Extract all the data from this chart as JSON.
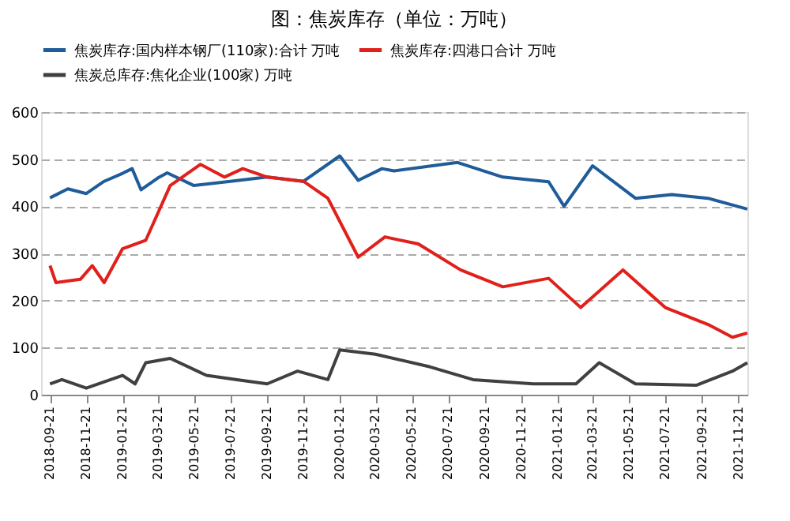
{
  "chart_data": {
    "type": "line",
    "title": "图：焦炭库存（单位：万吨）",
    "xlim": [
      "2018-09-06",
      "2021-12-06"
    ],
    "xticks": [
      "2018-09-21",
      "2018-11-21",
      "2019-01-21",
      "2019-03-21",
      "2019-05-21",
      "2019-07-21",
      "2019-09-21",
      "2019-11-21",
      "2020-01-21",
      "2020-03-21",
      "2020-05-21",
      "2020-07-21",
      "2020-09-21",
      "2020-11-21",
      "2021-01-21",
      "2021-03-21",
      "2021-05-21",
      "2021-07-21",
      "2021-09-21",
      "2021-11-21"
    ],
    "ylim": [
      0,
      600
    ],
    "yticks": [
      0,
      100,
      200,
      300,
      400,
      500,
      600
    ],
    "grid": "y",
    "legend": "top",
    "line_style": "solid",
    "marker": "none",
    "series": [
      {
        "name": "焦炭库存:国内样本钢厂(110家):合计 万吨",
        "color": "#1f5c99",
        "x": [
          "2018-09-21",
          "2018-10-21",
          "2018-11-21",
          "2018-12-21",
          "2019-01-21",
          "2019-02-06",
          "2019-02-21",
          "2019-03-21",
          "2019-04-06",
          "2019-05-21",
          "2019-07-21",
          "2019-09-21",
          "2019-11-21",
          "2020-01-21",
          "2020-02-21",
          "2020-04-01",
          "2020-04-21",
          "2020-08-06",
          "2020-10-21",
          "2021-01-06",
          "2021-02-01",
          "2021-03-21",
          "2021-06-01",
          "2021-08-01",
          "2021-10-01",
          "2021-12-06"
        ],
        "values": [
          418,
          437,
          427,
          453,
          470,
          480,
          435,
          460,
          471,
          444,
          453,
          462,
          453,
          507,
          455,
          480,
          475,
          493,
          462,
          452,
          400,
          486,
          417,
          425,
          417,
          394
        ]
      },
      {
        "name": "焦炭库存:四港口合计 万吨",
        "color": "#e0201b",
        "x": [
          "2018-09-21",
          "2018-10-01",
          "2018-11-11",
          "2018-12-01",
          "2018-12-21",
          "2019-01-21",
          "2019-03-01",
          "2019-04-11",
          "2019-06-01",
          "2019-07-11",
          "2019-08-11",
          "2019-09-21",
          "2019-11-21",
          "2020-01-01",
          "2020-02-21",
          "2020-04-06",
          "2020-06-01",
          "2020-08-11",
          "2020-10-21",
          "2021-01-06",
          "2021-03-01",
          "2021-05-11",
          "2021-07-21",
          "2021-10-01",
          "2021-11-11",
          "2021-12-06"
        ],
        "values": [
          274,
          238,
          245,
          274,
          238,
          310,
          328,
          444,
          489,
          462,
          480,
          462,
          453,
          417,
          292,
          335,
          320,
          265,
          229,
          247,
          185,
          265,
          185,
          149,
          122,
          131
        ]
      },
      {
        "name": "焦炭总库存:焦化企业(100家) 万吨",
        "color": "#404040",
        "x": [
          "2018-09-21",
          "2018-10-11",
          "2018-11-21",
          "2019-01-21",
          "2019-02-11",
          "2019-03-01",
          "2019-04-11",
          "2019-06-11",
          "2019-08-01",
          "2019-09-21",
          "2019-11-11",
          "2020-01-01",
          "2020-01-21",
          "2020-03-21",
          "2020-06-21",
          "2020-09-01",
          "2020-12-11",
          "2021-02-21",
          "2021-04-01",
          "2021-06-01",
          "2021-09-11",
          "2021-11-11",
          "2021-12-06"
        ],
        "values": [
          23,
          32,
          14,
          41,
          23,
          68,
          77,
          41,
          32,
          23,
          50,
          32,
          95,
          86,
          59,
          32,
          23,
          23,
          68,
          23,
          20,
          50,
          68
        ]
      }
    ]
  }
}
